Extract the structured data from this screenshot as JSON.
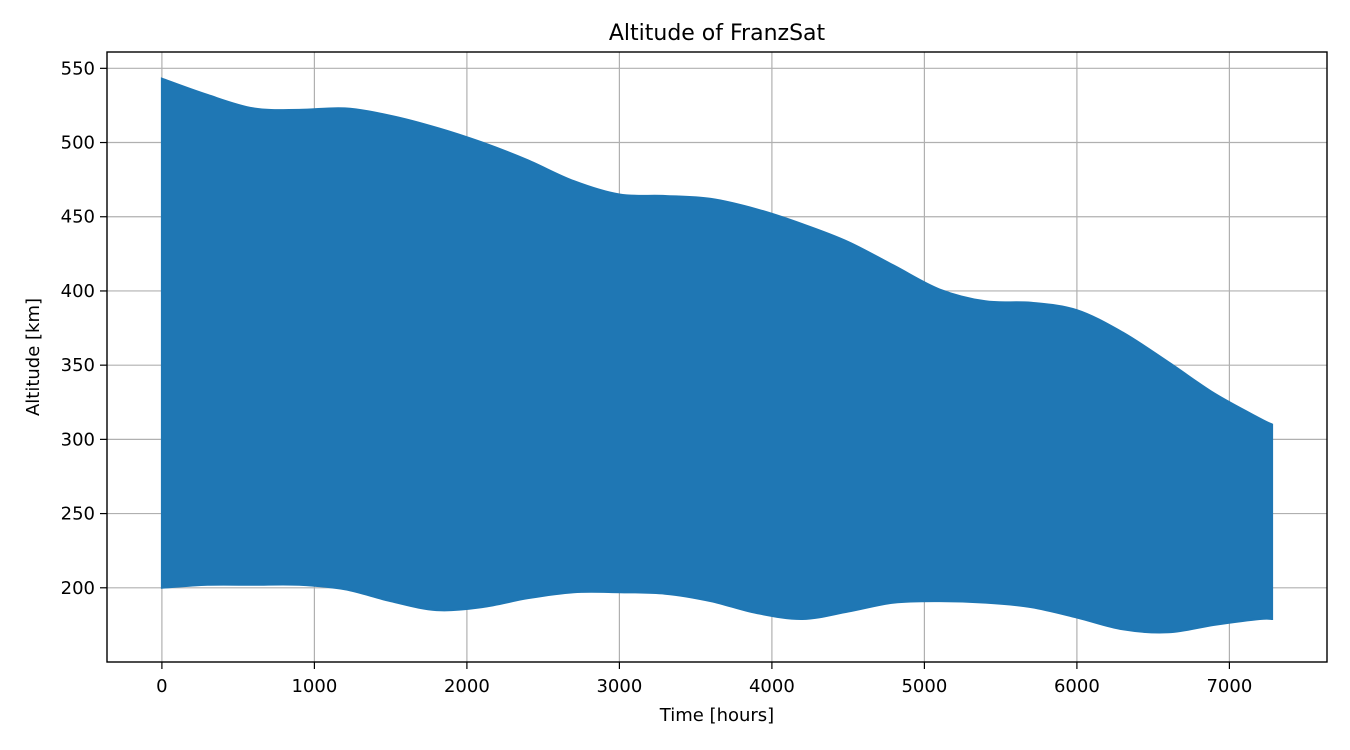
{
  "chart_data": {
    "type": "area",
    "title": "Altitude of FranzSat",
    "xlabel": "Time [hours]",
    "ylabel": "Altitude [km]",
    "xlim": [
      -360,
      7640
    ],
    "ylim": [
      150,
      561
    ],
    "xticks": [
      0,
      1000,
      2000,
      3000,
      4000,
      5000,
      6000,
      7000
    ],
    "yticks": [
      200,
      250,
      300,
      350,
      400,
      450,
      500,
      550
    ],
    "grid": true,
    "color": "#1f77b4",
    "series": [
      {
        "x": [
          0,
          300,
          600,
          900,
          1200,
          1500,
          1800,
          2100,
          2400,
          2700,
          3000,
          3300,
          3600,
          3900,
          4200,
          4500,
          4800,
          5100,
          5400,
          5700,
          6000,
          6300,
          6600,
          6900,
          7200,
          7280
        ],
        "upper": [
          543,
          532,
          523,
          522,
          523,
          518,
          510,
          500,
          488,
          474,
          465,
          464,
          462,
          455,
          445,
          433,
          417,
          401,
          393,
          392,
          387,
          372,
          352,
          331,
          314,
          310
        ],
        "lower": [
          200,
          202,
          202,
          202,
          199,
          191,
          185,
          187,
          193,
          197,
          197,
          196,
          191,
          183,
          179,
          184,
          190,
          191,
          190,
          187,
          180,
          172,
          170,
          175,
          179,
          179
        ]
      }
    ]
  }
}
